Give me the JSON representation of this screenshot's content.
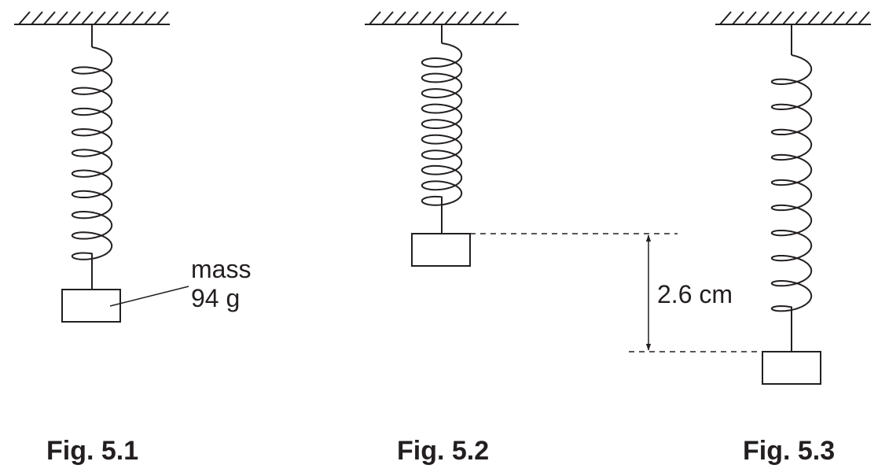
{
  "figures": [
    {
      "caption": "Fig. 5.1",
      "label_line1": "mass",
      "label_line2": "94 g"
    },
    {
      "caption": "Fig. 5.2",
      "extension_label": "2.6 cm"
    },
    {
      "caption": "Fig. 5.3"
    }
  ],
  "colors": {
    "ink": "#231f20",
    "background": "#ffffff"
  }
}
